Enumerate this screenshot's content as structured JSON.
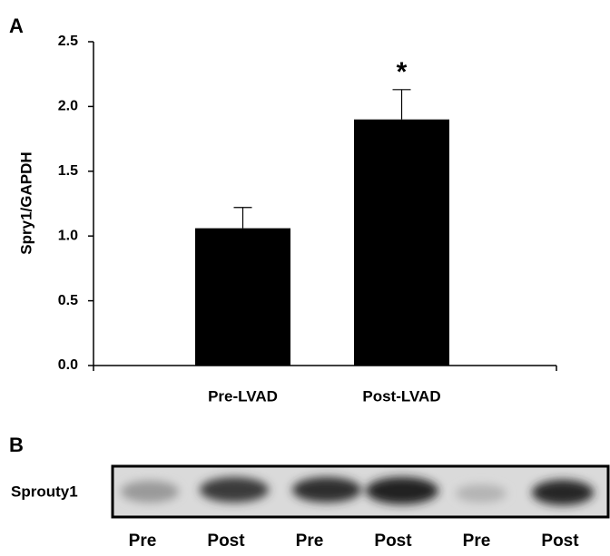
{
  "panel_labels": [
    "A",
    "B"
  ],
  "chart_data": {
    "type": "bar",
    "y_label": "Spry1/GAPDH",
    "categories": [
      "Pre-LVAD",
      "Post-LVAD"
    ],
    "values": [
      1.06,
      1.9
    ],
    "errors": [
      0.16,
      0.23
    ],
    "color": "#000000",
    "annotation": "*",
    "ylim": [
      0,
      2.5
    ],
    "yticks": [
      {
        "value": 0,
        "label": "0.0"
      },
      {
        "value": 0.5,
        "label": "0.5"
      },
      {
        "value": 1,
        "label": "1.0"
      },
      {
        "value": 1.5,
        "label": "1.5"
      },
      {
        "value": 2,
        "label": "2.0"
      },
      {
        "value": 2.5,
        "label": "2.5"
      }
    ],
    "grid": false
  },
  "blot": {
    "label": "Sprouty1",
    "lanes": [
      "Pre",
      "Post",
      "Pre",
      "Post",
      "Pre",
      "Post"
    ]
  }
}
